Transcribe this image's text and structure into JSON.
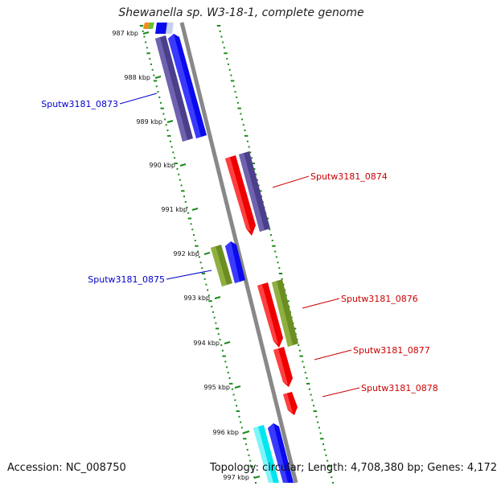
{
  "title": "Shewanella sp. W3-18-1, complete genome",
  "footer": {
    "accession": "Accession: NC_008750",
    "topology": "Topology: circular; Length: 4,708,380 bp; Genes: 4,172"
  },
  "scale": {
    "unit": "kbp",
    "ticks": [
      {
        "label": "987 kbp"
      },
      {
        "label": "988 kbp"
      },
      {
        "label": "989 kbp"
      },
      {
        "label": "990 kbp"
      },
      {
        "label": "991 kbp"
      },
      {
        "label": "992 kbp"
      },
      {
        "label": "993 kbp"
      },
      {
        "label": "994 kbp"
      },
      {
        "label": "995 kbp"
      },
      {
        "label": "996 kbp"
      },
      {
        "label": "997 kbp"
      }
    ]
  },
  "gene_labels": [
    {
      "name": "Sputw3181_0873",
      "color": "#0000cc"
    },
    {
      "name": "Sputw3181_0874",
      "color": "#cc0000"
    },
    {
      "name": "Sputw3181_0875",
      "color": "#0000cc"
    },
    {
      "name": "Sputw3181_0876",
      "color": "#cc0000"
    },
    {
      "name": "Sputw3181_0877",
      "color": "#cc0000"
    },
    {
      "name": "Sputw3181_0878",
      "color": "#cc0000"
    }
  ],
  "colors": {
    "backbone": "#888888",
    "gc_dots": "#1a8a1a",
    "purple_gene": "#4b3f8c",
    "blue_gene": "#0a0aee",
    "red_gene": "#ee0000",
    "olive_gene": "#6b8e23",
    "cyan_gene": "#00e5ee"
  }
}
